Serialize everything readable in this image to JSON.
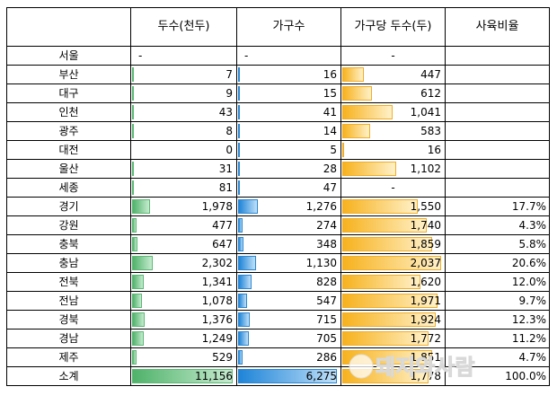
{
  "headers": [
    "",
    "두수(천두)",
    "가구수",
    "가구당 두수(두)",
    "사육비율"
  ],
  "colors": {
    "head_bar": "#5bb874",
    "house_bar": "#2a86d0",
    "per_bar": "#f0ad25"
  },
  "bar_max": {
    "head": 11156,
    "house": 6275,
    "per": 2037
  },
  "rows": [
    {
      "region": "서울",
      "head": "-",
      "head_v": null,
      "house": "-",
      "house_v": null,
      "per": "-",
      "per_v": null,
      "ratio": ""
    },
    {
      "region": "부산",
      "head": "7",
      "head_v": 7,
      "house": "16",
      "house_v": 16,
      "per": "447",
      "per_v": 447,
      "ratio": ""
    },
    {
      "region": "대구",
      "head": "9",
      "head_v": 9,
      "house": "15",
      "house_v": 15,
      "per": "612",
      "per_v": 612,
      "ratio": ""
    },
    {
      "region": "인천",
      "head": "43",
      "head_v": 43,
      "house": "41",
      "house_v": 41,
      "per": "1,041",
      "per_v": 1041,
      "ratio": ""
    },
    {
      "region": "광주",
      "head": "8",
      "head_v": 8,
      "house": "14",
      "house_v": 14,
      "per": "583",
      "per_v": 583,
      "ratio": ""
    },
    {
      "region": "대전",
      "head": "0",
      "head_v": 0,
      "house": "5",
      "house_v": 5,
      "per": "16",
      "per_v": 16,
      "ratio": ""
    },
    {
      "region": "울산",
      "head": "31",
      "head_v": 31,
      "house": "28",
      "house_v": 28,
      "per": "1,102",
      "per_v": 1102,
      "ratio": ""
    },
    {
      "region": "세종",
      "head": "81",
      "head_v": 81,
      "house": "47",
      "house_v": 47,
      "per": "-",
      "per_v": null,
      "ratio": ""
    },
    {
      "region": "경기",
      "head": "1,978",
      "head_v": 1978,
      "house": "1,276",
      "house_v": 1276,
      "per": "1,550",
      "per_v": 1550,
      "ratio": "17.7%"
    },
    {
      "region": "강원",
      "head": "477",
      "head_v": 477,
      "house": "274",
      "house_v": 274,
      "per": "1,740",
      "per_v": 1740,
      "ratio": "4.3%"
    },
    {
      "region": "충북",
      "head": "647",
      "head_v": 647,
      "house": "348",
      "house_v": 348,
      "per": "1,859",
      "per_v": 1859,
      "ratio": "5.8%"
    },
    {
      "region": "충남",
      "head": "2,302",
      "head_v": 2302,
      "house": "1,130",
      "house_v": 1130,
      "per": "2,037",
      "per_v": 2037,
      "ratio": "20.6%"
    },
    {
      "region": "전북",
      "head": "1,341",
      "head_v": 1341,
      "house": "828",
      "house_v": 828,
      "per": "1,620",
      "per_v": 1620,
      "ratio": "12.0%"
    },
    {
      "region": "전남",
      "head": "1,078",
      "head_v": 1078,
      "house": "547",
      "house_v": 547,
      "per": "1,971",
      "per_v": 1971,
      "ratio": "9.7%"
    },
    {
      "region": "경북",
      "head": "1,376",
      "head_v": 1376,
      "house": "715",
      "house_v": 715,
      "per": "1,924",
      "per_v": 1924,
      "ratio": "12.3%"
    },
    {
      "region": "경남",
      "head": "1,249",
      "head_v": 1249,
      "house": "705",
      "house_v": 705,
      "per": "1,772",
      "per_v": 1772,
      "ratio": "11.2%"
    },
    {
      "region": "제주",
      "head": "529",
      "head_v": 529,
      "house": "286",
      "house_v": 286,
      "per": "1,851",
      "per_v": 1851,
      "ratio": "4.7%"
    },
    {
      "region": "소계",
      "head": "11,156",
      "head_v": 11156,
      "house": "6,275",
      "house_v": 6275,
      "per": "1,778",
      "per_v": 1778,
      "ratio": "100.0%"
    }
  ],
  "watermark": "돼지와사람"
}
